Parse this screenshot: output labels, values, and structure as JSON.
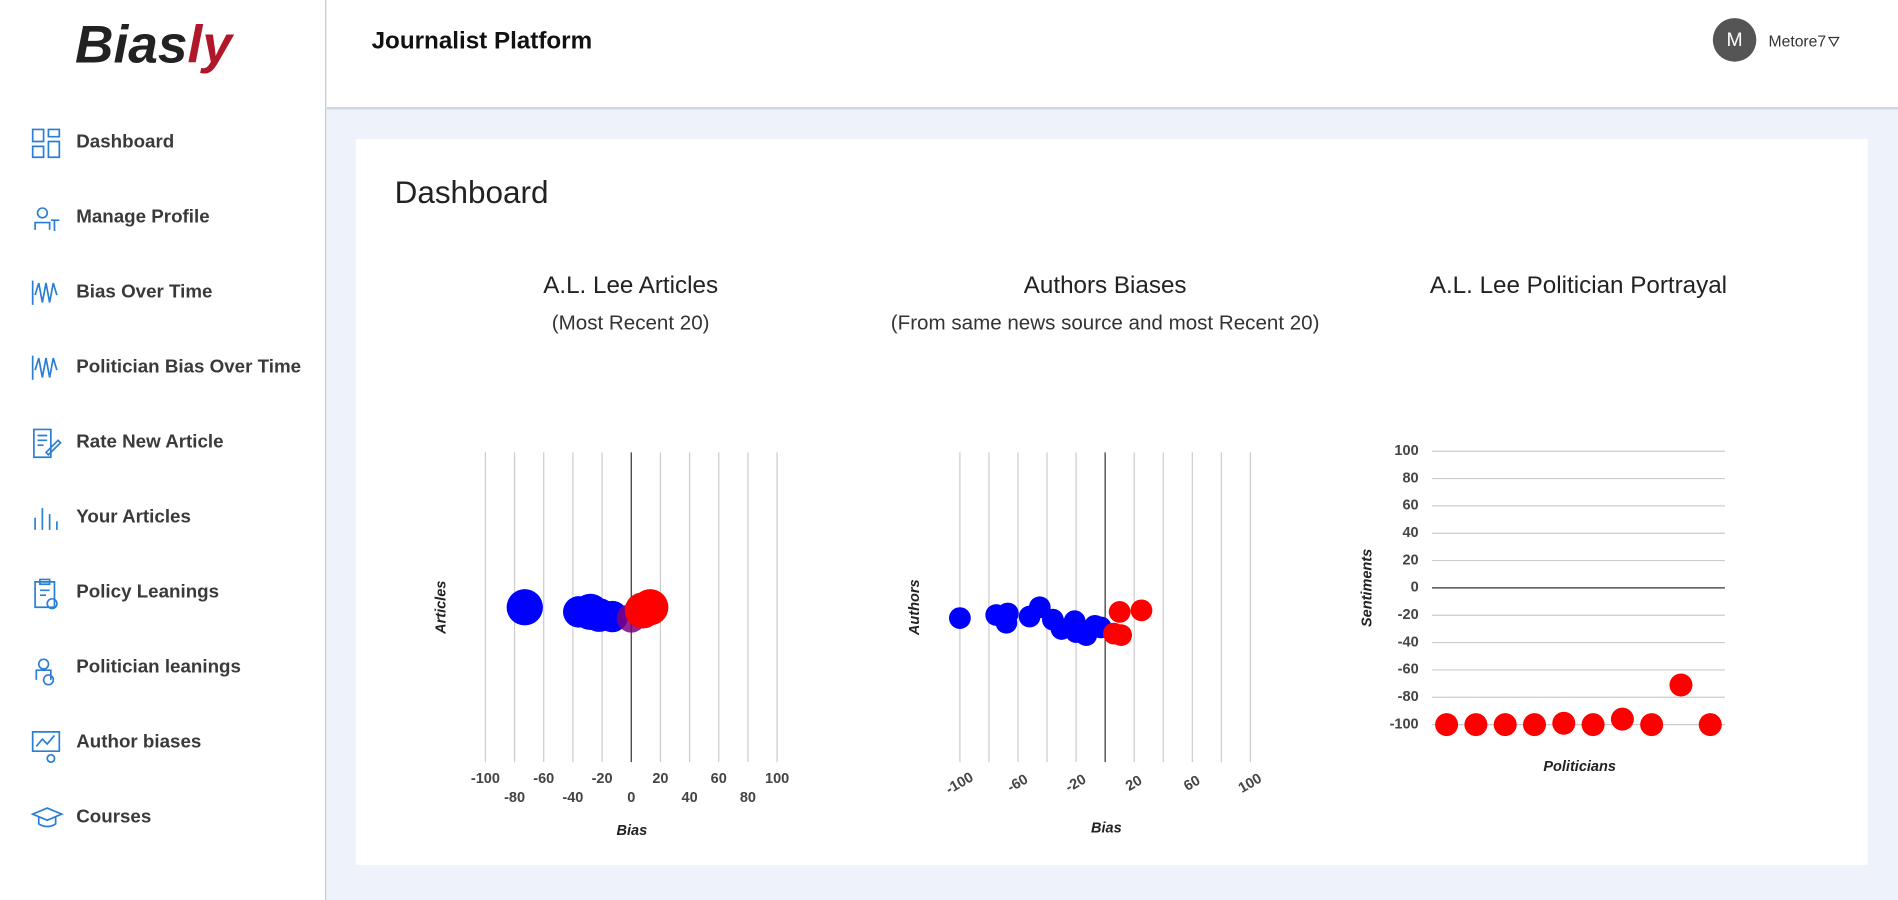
{
  "sidebar": {
    "logo": {
      "text": "Bias",
      "accent": "ly"
    },
    "nav": [
      "Dashboard",
      "Manage Profile",
      "Bias Over Time",
      "Politician Bias Over Time",
      "Rate New Article",
      "Your Articles",
      "Policy Leanings",
      "Politician leanings",
      "Author biases",
      "Courses"
    ]
  },
  "header": {
    "title": "Journalist Platform",
    "avatar": "M",
    "user": "Metore7"
  },
  "page_title": "Dashboard",
  "charts": [
    {
      "type": "bubble",
      "title": "A.L. Lee Articles",
      "subtitle": "(Most Recent 20)",
      "xlabel": "Bias",
      "ylabel": "Articles",
      "xlim": [
        -100,
        100
      ],
      "xticks": [
        -100,
        -80,
        -60,
        -40,
        -20,
        0,
        20,
        40,
        60,
        80,
        100
      ],
      "xtick_stagger": true,
      "ylim": [
        -10,
        10
      ],
      "x": [
        -73,
        -36,
        -28,
        -22,
        -13,
        0,
        8,
        13
      ],
      "y": [
        0,
        -0.3,
        -0.3,
        -0.5,
        -0.6,
        -0.7,
        -0.2,
        0
      ],
      "size": [
        15,
        13,
        15,
        14,
        13,
        12,
        15,
        15
      ],
      "colors": [
        "#0000ff",
        "#0000ff",
        "#0000ff",
        "#0000ff",
        "#0000ff",
        "#800080",
        "#ff0000",
        "#ff0000"
      ]
    },
    {
      "type": "bubble",
      "title": "Authors Biases",
      "subtitle": "(From same news source and most Recent 20)",
      "xlabel": "Bias",
      "ylabel": "Authors",
      "xlim": [
        -100,
        100
      ],
      "xticks": [
        -100,
        -60,
        -20,
        20,
        60,
        100
      ],
      "xgrid": [
        -100,
        -80,
        -60,
        -40,
        -20,
        0,
        20,
        40,
        60,
        80,
        100
      ],
      "xtick_rotation": -30,
      "ylim": [
        -10,
        10
      ],
      "x": [
        -100,
        -75,
        -67,
        -68,
        -52,
        -45,
        -36,
        -30,
        -21,
        -20,
        -13,
        -7,
        -3,
        10,
        25,
        6,
        11
      ],
      "y": [
        -0.7,
        -0.5,
        -0.4,
        -1,
        -0.6,
        0,
        -0.8,
        -1.4,
        -0.9,
        -1.6,
        -1.8,
        -1.2,
        -1.3,
        -0.3,
        -0.2,
        -1.7,
        -1.8
      ],
      "size": [
        9,
        9,
        9,
        9,
        9,
        9,
        9,
        9,
        9,
        9,
        9,
        9,
        9,
        9,
        9,
        9,
        9
      ],
      "colors": [
        "#0000ff",
        "#0000ff",
        "#0000ff",
        "#0000ff",
        "#0000ff",
        "#0000ff",
        "#0000ff",
        "#0000ff",
        "#0000ff",
        "#0000ff",
        "#0000ff",
        "#0000ff",
        "#0000ff",
        "#ff0000",
        "#ff0000",
        "#ff0000",
        "#ff0000"
      ]
    },
    {
      "type": "scatter",
      "title": "A.L. Lee Politician Portrayal",
      "xlabel": "Politicians",
      "ylabel": "Sentiments",
      "categories": [
        null,
        null,
        null,
        null,
        null,
        null,
        null,
        null,
        null,
        null
      ],
      "values": [
        -100,
        -100,
        -100,
        -100,
        -99,
        -100,
        -96,
        -100,
        -71,
        -100
      ],
      "color": "#ff0000",
      "ylim": [
        -100,
        100
      ],
      "yticks": [
        -100,
        -80,
        -60,
        -40,
        -20,
        0,
        20,
        40,
        60,
        80,
        100
      ],
      "grid": true
    }
  ]
}
